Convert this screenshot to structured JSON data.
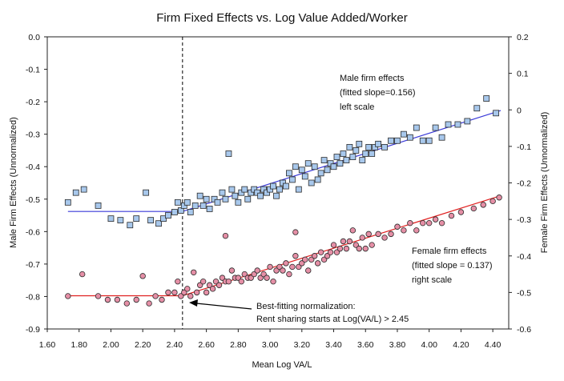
{
  "chart_data": {
    "type": "scatter",
    "title": "Firm Fixed Effects vs. Log Value Added/Worker",
    "xlabel": "Mean Log VA/L",
    "ylabel_left": "Male Firm Effects (Unnormalized)",
    "ylabel_right": "Female Firm Effects (Unnormalized)",
    "xlim": [
      1.6,
      4.5
    ],
    "ylim_left": [
      -0.9,
      0.0
    ],
    "ylim_right": [
      -0.6,
      0.2
    ],
    "x_ticks": [
      "1.60",
      "1.80",
      "2.00",
      "2.20",
      "2.40",
      "2.60",
      "2.80",
      "3.00",
      "3.20",
      "3.40",
      "3.60",
      "3.80",
      "4.00",
      "4.20",
      "4.40"
    ],
    "y_ticks_left": [
      "0.0",
      "-0.1",
      "-0.2",
      "-0.3",
      "-0.4",
      "-0.5",
      "-0.6",
      "-0.7",
      "-0.8",
      "-0.9"
    ],
    "y_ticks_right": [
      "0.2",
      "0.1",
      "0",
      "-0.1",
      "-0.2",
      "-0.3",
      "-0.4",
      "-0.5",
      "-0.6"
    ],
    "threshold_x": 2.45,
    "colors": {
      "male_marker": "#a8c8ec",
      "male_edge": "#2b2b2b",
      "male_line": "#3a3ad8",
      "female_marker": "#e58fa6",
      "female_edge": "#2b2b2b",
      "female_line": "#e02020"
    },
    "series": [
      {
        "name": "Male firm effects",
        "axis": "left",
        "marker": "square",
        "fit": {
          "x": [
            1.73,
            2.45,
            4.45
          ],
          "y": [
            -0.538,
            -0.538,
            -0.227
          ]
        },
        "points": [
          [
            1.73,
            -0.51
          ],
          [
            1.78,
            -0.48
          ],
          [
            1.83,
            -0.47
          ],
          [
            1.92,
            -0.52
          ],
          [
            2.0,
            -0.56
          ],
          [
            2.06,
            -0.565
          ],
          [
            2.12,
            -0.58
          ],
          [
            2.16,
            -0.56
          ],
          [
            2.22,
            -0.48
          ],
          [
            2.25,
            -0.565
          ],
          [
            2.3,
            -0.575
          ],
          [
            2.33,
            -0.56
          ],
          [
            2.36,
            -0.55
          ],
          [
            2.4,
            -0.54
          ],
          [
            2.42,
            -0.51
          ],
          [
            2.44,
            -0.535
          ],
          [
            2.46,
            -0.52
          ],
          [
            2.48,
            -0.51
          ],
          [
            2.5,
            -0.54
          ],
          [
            2.53,
            -0.52
          ],
          [
            2.56,
            -0.49
          ],
          [
            2.58,
            -0.52
          ],
          [
            2.6,
            -0.5
          ],
          [
            2.62,
            -0.53
          ],
          [
            2.65,
            -0.5
          ],
          [
            2.67,
            -0.51
          ],
          [
            2.7,
            -0.48
          ],
          [
            2.72,
            -0.5
          ],
          [
            2.74,
            -0.36
          ],
          [
            2.76,
            -0.47
          ],
          [
            2.78,
            -0.49
          ],
          [
            2.8,
            -0.51
          ],
          [
            2.82,
            -0.48
          ],
          [
            2.84,
            -0.47
          ],
          [
            2.86,
            -0.5
          ],
          [
            2.88,
            -0.48
          ],
          [
            2.9,
            -0.47
          ],
          [
            2.92,
            -0.48
          ],
          [
            2.94,
            -0.49
          ],
          [
            2.96,
            -0.47
          ],
          [
            2.98,
            -0.48
          ],
          [
            3.0,
            -0.47
          ],
          [
            3.02,
            -0.46
          ],
          [
            3.04,
            -0.49
          ],
          [
            3.06,
            -0.47
          ],
          [
            3.08,
            -0.45
          ],
          [
            3.1,
            -0.46
          ],
          [
            3.12,
            -0.42
          ],
          [
            3.14,
            -0.44
          ],
          [
            3.16,
            -0.4
          ],
          [
            3.18,
            -0.47
          ],
          [
            3.2,
            -0.41
          ],
          [
            3.22,
            -0.43
          ],
          [
            3.24,
            -0.39
          ],
          [
            3.26,
            -0.45
          ],
          [
            3.28,
            -0.4
          ],
          [
            3.3,
            -0.44
          ],
          [
            3.32,
            -0.42
          ],
          [
            3.34,
            -0.38
          ],
          [
            3.36,
            -0.41
          ],
          [
            3.38,
            -0.39
          ],
          [
            3.4,
            -0.4
          ],
          [
            3.42,
            -0.37
          ],
          [
            3.44,
            -0.39
          ],
          [
            3.46,
            -0.36
          ],
          [
            3.48,
            -0.38
          ],
          [
            3.5,
            -0.34
          ],
          [
            3.52,
            -0.37
          ],
          [
            3.54,
            -0.35
          ],
          [
            3.56,
            -0.33
          ],
          [
            3.58,
            -0.38
          ],
          [
            3.6,
            -0.36
          ],
          [
            3.62,
            -0.34
          ],
          [
            3.64,
            -0.36
          ],
          [
            3.66,
            -0.34
          ],
          [
            3.68,
            -0.33
          ],
          [
            3.72,
            -0.34
          ],
          [
            3.76,
            -0.32
          ],
          [
            3.8,
            -0.32
          ],
          [
            3.84,
            -0.3
          ],
          [
            3.88,
            -0.31
          ],
          [
            3.92,
            -0.28
          ],
          [
            3.96,
            -0.32
          ],
          [
            4.0,
            -0.32
          ],
          [
            4.04,
            -0.28
          ],
          [
            4.08,
            -0.31
          ],
          [
            4.12,
            -0.27
          ],
          [
            4.18,
            -0.27
          ],
          [
            4.24,
            -0.26
          ],
          [
            4.3,
            -0.22
          ],
          [
            4.36,
            -0.19
          ],
          [
            4.42,
            -0.235
          ]
        ]
      },
      {
        "name": "Female firm effects",
        "axis": "right",
        "marker": "circle",
        "fit": {
          "x": [
            1.73,
            2.45,
            4.45
          ],
          "y": [
            -0.509,
            -0.509,
            -0.235
          ]
        },
        "points": [
          [
            1.73,
            -0.51
          ],
          [
            1.82,
            -0.45
          ],
          [
            1.92,
            -0.51
          ],
          [
            1.98,
            -0.52
          ],
          [
            2.04,
            -0.52
          ],
          [
            2.1,
            -0.53
          ],
          [
            2.16,
            -0.52
          ],
          [
            2.2,
            -0.455
          ],
          [
            2.24,
            -0.53
          ],
          [
            2.28,
            -0.51
          ],
          [
            2.32,
            -0.52
          ],
          [
            2.36,
            -0.5
          ],
          [
            2.4,
            -0.5
          ],
          [
            2.42,
            -0.47
          ],
          [
            2.44,
            -0.51
          ],
          [
            2.46,
            -0.5
          ],
          [
            2.48,
            -0.49
          ],
          [
            2.5,
            -0.51
          ],
          [
            2.52,
            -0.445
          ],
          [
            2.54,
            -0.5
          ],
          [
            2.56,
            -0.48
          ],
          [
            2.58,
            -0.47
          ],
          [
            2.6,
            -0.5
          ],
          [
            2.62,
            -0.48
          ],
          [
            2.64,
            -0.49
          ],
          [
            2.66,
            -0.47
          ],
          [
            2.68,
            -0.48
          ],
          [
            2.7,
            -0.46
          ],
          [
            2.72,
            -0.47
          ],
          [
            2.74,
            -0.47
          ],
          [
            2.76,
            -0.44
          ],
          [
            2.78,
            -0.46
          ],
          [
            2.8,
            -0.46
          ],
          [
            2.82,
            -0.47
          ],
          [
            2.84,
            -0.45
          ],
          [
            2.86,
            -0.46
          ],
          [
            2.88,
            -0.46
          ],
          [
            2.9,
            -0.45
          ],
          [
            2.92,
            -0.44
          ],
          [
            2.94,
            -0.46
          ],
          [
            2.96,
            -0.45
          ],
          [
            2.98,
            -0.46
          ],
          [
            3.0,
            -0.43
          ],
          [
            3.02,
            -0.47
          ],
          [
            3.04,
            -0.44
          ],
          [
            3.06,
            -0.43
          ],
          [
            3.08,
            -0.44
          ],
          [
            3.1,
            -0.42
          ],
          [
            3.12,
            -0.45
          ],
          [
            3.14,
            -0.43
          ],
          [
            3.16,
            -0.4
          ],
          [
            3.18,
            -0.43
          ],
          [
            3.2,
            -0.42
          ],
          [
            3.22,
            -0.41
          ],
          [
            3.24,
            -0.44
          ],
          [
            3.26,
            -0.41
          ],
          [
            3.28,
            -0.4
          ],
          [
            3.3,
            -0.42
          ],
          [
            3.32,
            -0.39
          ],
          [
            3.34,
            -0.41
          ],
          [
            3.36,
            -0.4
          ],
          [
            3.38,
            -0.39
          ],
          [
            3.4,
            -0.37
          ],
          [
            3.42,
            -0.39
          ],
          [
            3.44,
            -0.38
          ],
          [
            3.46,
            -0.36
          ],
          [
            3.48,
            -0.38
          ],
          [
            3.5,
            -0.36
          ],
          [
            3.52,
            -0.33
          ],
          [
            3.54,
            -0.37
          ],
          [
            3.56,
            -0.38
          ],
          [
            3.58,
            -0.35
          ],
          [
            3.6,
            -0.38
          ],
          [
            3.62,
            -0.34
          ],
          [
            3.64,
            -0.37
          ],
          [
            3.68,
            -0.34
          ],
          [
            3.72,
            -0.35
          ],
          [
            3.76,
            -0.34
          ],
          [
            3.8,
            -0.32
          ],
          [
            3.84,
            -0.33
          ],
          [
            3.88,
            -0.31
          ],
          [
            3.92,
            -0.33
          ],
          [
            3.96,
            -0.31
          ],
          [
            4.0,
            -0.31
          ],
          [
            4.04,
            -0.3
          ],
          [
            4.08,
            -0.31
          ],
          [
            4.14,
            -0.29
          ],
          [
            4.2,
            -0.28
          ],
          [
            4.28,
            -0.27
          ],
          [
            4.34,
            -0.26
          ],
          [
            4.4,
            -0.25
          ],
          [
            4.44,
            -0.24
          ],
          [
            3.16,
            -0.335
          ],
          [
            2.72,
            -0.345
          ]
        ]
      }
    ],
    "annotations": {
      "male_label": [
        "Male firm effects",
        "(fitted slope=0.156)",
        "left scale"
      ],
      "female_label": [
        "Female firm effects",
        "(fitted slope = 0.137)",
        "right scale"
      ],
      "arrow_label": [
        "Best-fitting normalization:",
        "Rent sharing starts at Log(VA/L) > 2.45"
      ]
    }
  }
}
